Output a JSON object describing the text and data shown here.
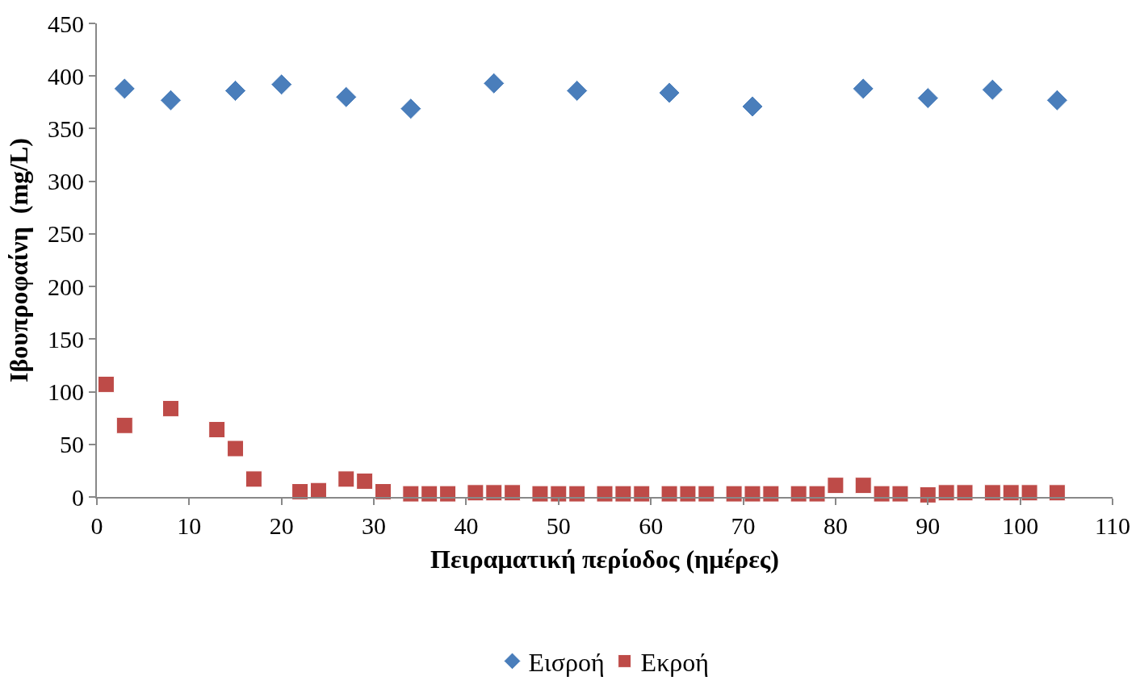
{
  "chart_data": {
    "type": "scatter",
    "xlabel": "Πειραματική περίοδος (ημέρες)",
    "ylabel": "Ιβουπροφαίνη  (mg/L)",
    "xlim": [
      0,
      110
    ],
    "xticks": [
      0,
      10,
      20,
      30,
      40,
      50,
      60,
      70,
      80,
      90,
      100,
      110
    ],
    "ylim": [
      0,
      450
    ],
    "yticks": [
      0,
      50,
      100,
      150,
      200,
      250,
      300,
      350,
      400,
      450
    ],
    "legend": "bottom",
    "series": [
      {
        "name": "Εισροή",
        "color": "#4a7ebb",
        "marker": "diamond",
        "x": [
          3,
          8,
          15,
          20,
          27,
          34,
          43,
          52,
          62,
          71,
          83,
          90,
          97,
          104
        ],
        "values": [
          388,
          377,
          386,
          392,
          380,
          369,
          393,
          386,
          384,
          371,
          388,
          379,
          387,
          377
        ]
      },
      {
        "name": "Εκροή",
        "color": "#be4b48",
        "marker": "square",
        "x": [
          1,
          3,
          8,
          13,
          15,
          17,
          22,
          24,
          27,
          29,
          31,
          34,
          36,
          38,
          41,
          43,
          45,
          48,
          50,
          52,
          55,
          57,
          59,
          62,
          64,
          66,
          69,
          71,
          73,
          76,
          78,
          80,
          83,
          85,
          87,
          90,
          92,
          94,
          97,
          99,
          101,
          104
        ],
        "values": [
          107,
          68,
          84,
          64,
          46,
          17,
          5,
          6,
          17,
          15,
          5,
          3,
          3,
          3,
          4,
          4,
          4,
          3,
          3,
          3,
          3,
          3,
          3,
          3,
          3,
          3,
          3,
          3,
          3,
          3,
          3,
          11,
          11,
          3,
          3,
          2,
          4,
          4,
          4,
          4,
          4,
          4
        ]
      }
    ]
  }
}
